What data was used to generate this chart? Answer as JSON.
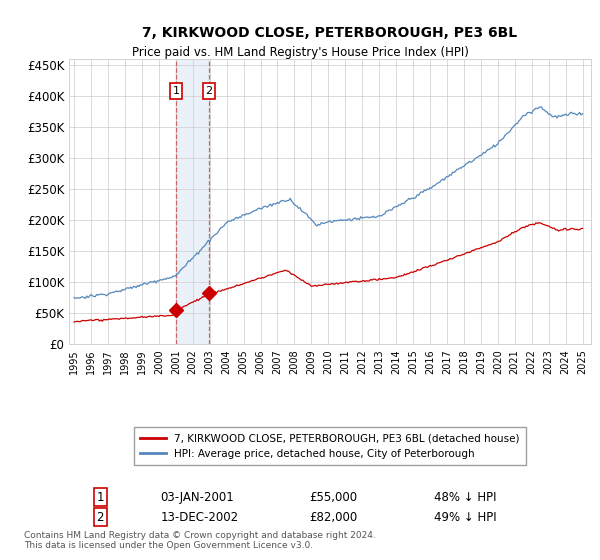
{
  "title": "7, KIRKWOOD CLOSE, PETERBOROUGH, PE3 6BL",
  "subtitle": "Price paid vs. HM Land Registry's House Price Index (HPI)",
  "title_fontsize": 10,
  "subtitle_fontsize": 8.5,
  "ylabel_ticks": [
    "£0",
    "£50K",
    "£100K",
    "£150K",
    "£200K",
    "£250K",
    "£300K",
    "£350K",
    "£400K",
    "£450K"
  ],
  "ytick_values": [
    0,
    50000,
    100000,
    150000,
    200000,
    250000,
    300000,
    350000,
    400000,
    450000
  ],
  "ylim": [
    0,
    460000
  ],
  "xlim_start": 1994.7,
  "xlim_end": 2025.5,
  "sale1_x": 2001.01,
  "sale1_y": 55000,
  "sale1_label": "1",
  "sale1_date": "03-JAN-2001",
  "sale1_price": "£55,000",
  "sale1_hpi": "48% ↓ HPI",
  "sale2_x": 2002.96,
  "sale2_y": 82000,
  "sale2_label": "2",
  "sale2_date": "13-DEC-2002",
  "sale2_price": "£82,000",
  "sale2_hpi": "49% ↓ HPI",
  "red_color": "#cc0000",
  "blue_color": "#5588bb",
  "vline_color": "#cc6666",
  "shade_color": "#c8d8f0",
  "grid_color": "#cccccc",
  "bg_color": "#ffffff",
  "legend1_label": "7, KIRKWOOD CLOSE, PETERBOROUGH, PE3 6BL (detached house)",
  "legend2_label": "HPI: Average price, detached house, City of Peterborough",
  "footer": "Contains HM Land Registry data © Crown copyright and database right 2024.\nThis data is licensed under the Open Government Licence v3.0.",
  "box_color": "#cc0000"
}
